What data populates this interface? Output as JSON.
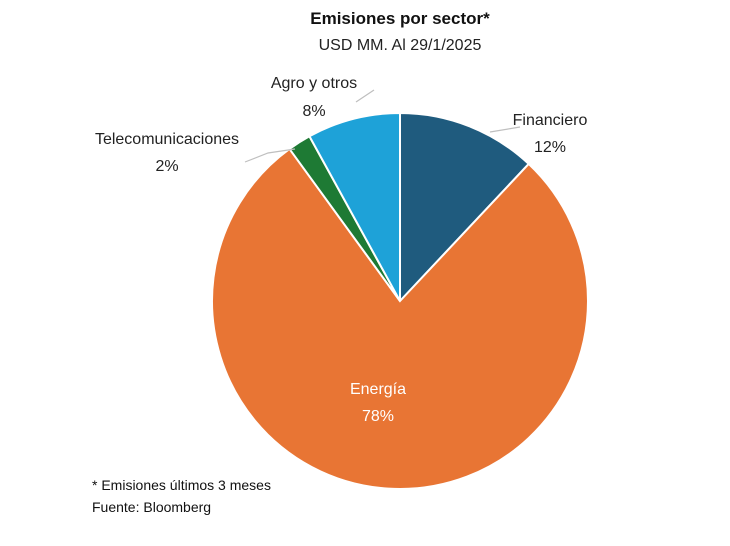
{
  "chart_data": {
    "type": "pie",
    "title": "Emisiones por sector*",
    "subtitle": "USD MM. Al 29/1/2025",
    "slices": [
      {
        "label": "Financiero",
        "value": 12,
        "value_label": "12%",
        "color": "#1f5b7e"
      },
      {
        "label": "Energía",
        "value": 78,
        "value_label": "78%",
        "color": "#e87534"
      },
      {
        "label": "Telecomunicaciones",
        "value": 2,
        "value_label": "2%",
        "color": "#1e7a34"
      },
      {
        "label": "Agro y otros",
        "value": 8,
        "value_label": "8%",
        "color": "#1ea2d8"
      }
    ]
  },
  "notes": {
    "footnote": "* Emisiones últimos 3 meses",
    "source": "Fuente: Bloomberg"
  }
}
